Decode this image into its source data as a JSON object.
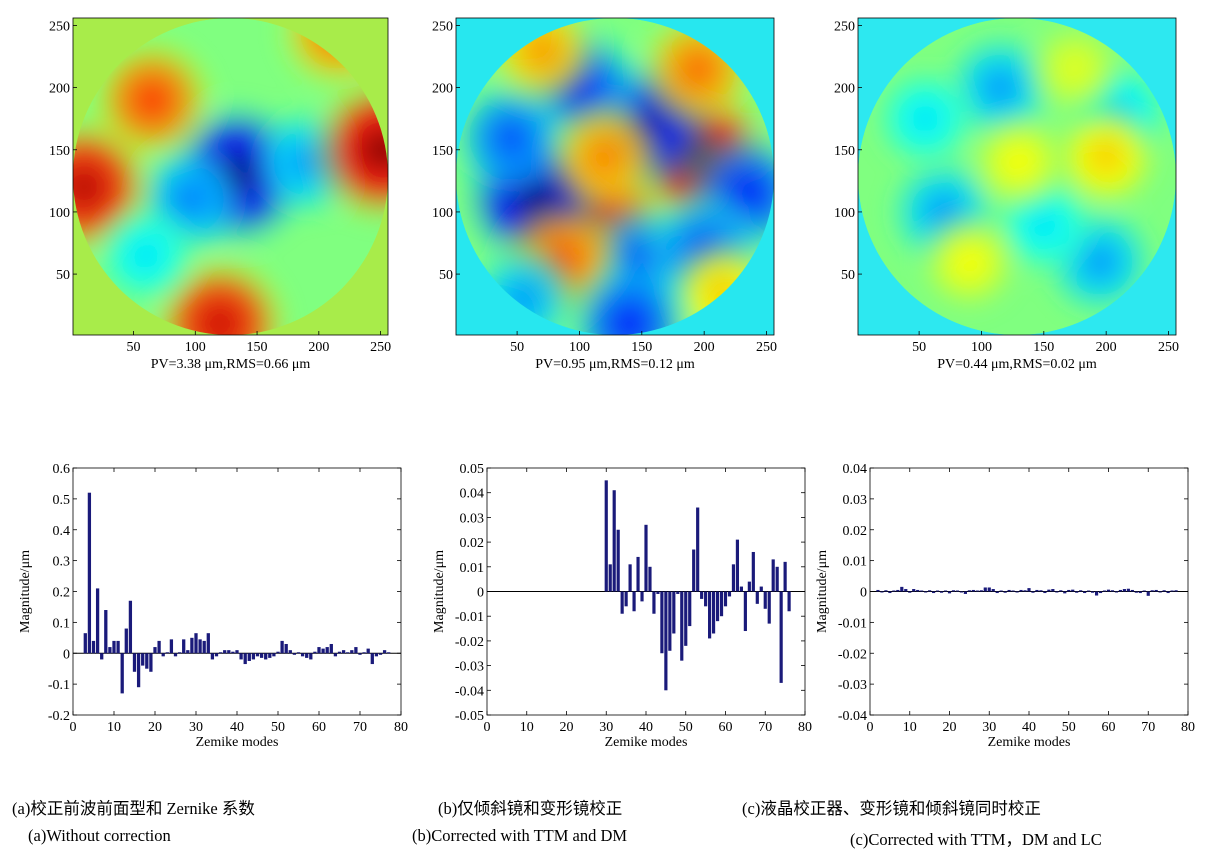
{
  "chart_data": [
    {
      "type": "heatmap",
      "panel": "a",
      "caption": "PV=3.38 μm,RMS=0.66 μm",
      "pv_um": 3.38,
      "rms_um": 0.66,
      "xlim": [
        1,
        256
      ],
      "ylim": [
        1,
        256
      ],
      "xticks": [
        50,
        100,
        150,
        200,
        250
      ],
      "yticks": [
        50,
        100,
        150,
        200,
        250
      ],
      "outside_color": "#a8ec4a",
      "colormap": "jet",
      "blobs": [
        {
          "x": 134,
          "y": 130,
          "level": -1.0
        },
        {
          "x": 95,
          "y": 110,
          "level": -0.5
        },
        {
          "x": 190,
          "y": 140,
          "level": -0.45
        },
        {
          "x": 65,
          "y": 190,
          "level": 0.65
        },
        {
          "x": 10,
          "y": 120,
          "level": 0.9
        },
        {
          "x": 252,
          "y": 150,
          "level": 1.0
        },
        {
          "x": 120,
          "y": 10,
          "level": 0.85
        },
        {
          "x": 215,
          "y": 245,
          "level": 0.55
        },
        {
          "x": 60,
          "y": 65,
          "level": -0.3
        }
      ]
    },
    {
      "type": "heatmap",
      "panel": "b",
      "caption": "PV=0.95 μm,RMS=0.12 μm",
      "pv_um": 0.95,
      "rms_um": 0.12,
      "xlim": [
        1,
        256
      ],
      "ylim": [
        1,
        256
      ],
      "xticks": [
        50,
        100,
        150,
        200,
        250
      ],
      "yticks": [
        50,
        100,
        150,
        200,
        250
      ],
      "outside_color": "#27e7ef",
      "colormap": "jet",
      "blobs": [
        {
          "x": 195,
          "y": 145,
          "level": 1.0
        },
        {
          "x": 118,
          "y": 100,
          "level": 0.75
        },
        {
          "x": 65,
          "y": 112,
          "level": -1.0
        },
        {
          "x": 155,
          "y": 170,
          "level": -0.85
        },
        {
          "x": 100,
          "y": 200,
          "level": -0.7
        },
        {
          "x": 45,
          "y": 160,
          "level": -0.6
        },
        {
          "x": 150,
          "y": 60,
          "level": -0.6
        },
        {
          "x": 235,
          "y": 115,
          "level": -0.7
        },
        {
          "x": 200,
          "y": 70,
          "level": -0.6
        },
        {
          "x": 85,
          "y": 60,
          "level": 0.6
        },
        {
          "x": 195,
          "y": 215,
          "level": 0.55
        },
        {
          "x": 70,
          "y": 230,
          "level": 0.45
        },
        {
          "x": 120,
          "y": 145,
          "level": 0.5
        },
        {
          "x": 215,
          "y": 35,
          "level": 0.35
        },
        {
          "x": 55,
          "y": 30,
          "level": -0.45
        },
        {
          "x": 140,
          "y": 10,
          "level": -0.7
        }
      ]
    },
    {
      "type": "heatmap",
      "panel": "c",
      "caption": "PV=0.44 μm,RMS=0.02 μm",
      "pv_um": 0.44,
      "rms_um": 0.02,
      "xlim": [
        1,
        256
      ],
      "ylim": [
        1,
        256
      ],
      "xticks": [
        50,
        100,
        150,
        200,
        250
      ],
      "yticks": [
        50,
        100,
        150,
        200,
        250
      ],
      "outside_color": "#2de8f0",
      "colormap": "jet",
      "blobs": [
        {
          "x": 70,
          "y": 100,
          "level": -0.45
        },
        {
          "x": 115,
          "y": 200,
          "level": -0.45
        },
        {
          "x": 195,
          "y": 60,
          "level": -0.45
        },
        {
          "x": 150,
          "y": 90,
          "level": -0.3
        },
        {
          "x": 210,
          "y": 180,
          "level": -0.35
        },
        {
          "x": 55,
          "y": 175,
          "level": -0.3
        },
        {
          "x": 200,
          "y": 145,
          "level": 0.35
        },
        {
          "x": 130,
          "y": 140,
          "level": 0.25
        },
        {
          "x": 90,
          "y": 60,
          "level": 0.25
        },
        {
          "x": 175,
          "y": 215,
          "level": 0.2
        }
      ]
    },
    {
      "type": "bar",
      "panel": "a",
      "xlabel": "Zemike modes",
      "ylabel": "Magnitude/μm",
      "xlim": [
        0,
        80
      ],
      "ylim": [
        -0.2,
        0.6
      ],
      "xticks": [
        0,
        10,
        20,
        30,
        40,
        50,
        60,
        70,
        80
      ],
      "yticks": [
        -0.2,
        -0.1,
        0,
        0.1,
        0.2,
        0.3,
        0.4,
        0.5,
        0.6
      ],
      "ytick_labels": [
        "-0.2",
        "-0.1",
        "0",
        "0.1",
        "0.2",
        "0.3",
        "0.4",
        "0.5",
        "0.6"
      ],
      "x": [
        3,
        4,
        5,
        6,
        7,
        8,
        9,
        10,
        11,
        12,
        13,
        14,
        15,
        16,
        17,
        18,
        19,
        20,
        21,
        22,
        23,
        24,
        25,
        26,
        27,
        28,
        29,
        30,
        31,
        32,
        33,
        34,
        35,
        36,
        37,
        38,
        39,
        40,
        41,
        42,
        43,
        44,
        45,
        46,
        47,
        48,
        49,
        50,
        51,
        52,
        53,
        54,
        55,
        56,
        57,
        58,
        59,
        60,
        61,
        62,
        63,
        64,
        65,
        66,
        67,
        68,
        69,
        70,
        71,
        72,
        73,
        74,
        75,
        76,
        77
      ],
      "values": [
        0.065,
        0.52,
        0.04,
        0.21,
        -0.02,
        0.14,
        0.02,
        0.04,
        0.04,
        -0.13,
        0.08,
        0.17,
        -0.06,
        -0.11,
        -0.04,
        -0.05,
        -0.06,
        0.02,
        0.04,
        -0.01,
        0.0,
        0.045,
        -0.01,
        0.0,
        0.045,
        0.01,
        0.05,
        0.065,
        0.045,
        0.04,
        0.065,
        -0.02,
        -0.01,
        0.0,
        0.01,
        0.01,
        0.005,
        0.01,
        -0.02,
        -0.035,
        -0.025,
        -0.02,
        -0.01,
        -0.015,
        -0.02,
        -0.015,
        -0.01,
        0.005,
        0.04,
        0.03,
        0.01,
        -0.005,
        0.0,
        -0.01,
        -0.015,
        -0.02,
        0.005,
        0.02,
        0.015,
        0.02,
        0.03,
        -0.01,
        0.005,
        0.01,
        0.0,
        0.01,
        0.02,
        -0.005,
        0.0,
        0.015,
        -0.035,
        -0.01,
        -0.005,
        0.01,
        0.0
      ],
      "color": "#1a1a7a"
    },
    {
      "type": "bar",
      "panel": "b",
      "xlabel": "Zemike modes",
      "ylabel": "Magnitude/μm",
      "xlim": [
        0,
        80
      ],
      "ylim": [
        -0.05,
        0.05
      ],
      "xticks": [
        0,
        10,
        20,
        30,
        40,
        50,
        60,
        70,
        80
      ],
      "yticks": [
        -0.05,
        -0.04,
        -0.03,
        -0.02,
        -0.01,
        0,
        0.01,
        0.02,
        0.03,
        0.04,
        0.05
      ],
      "ytick_labels": [
        "-0.05",
        "-0.04",
        "-0.03",
        "-0.02",
        "-0.01",
        "0",
        "0.01",
        "0.02",
        "0.03",
        "0.04",
        "0.05"
      ],
      "x": [
        30,
        31,
        32,
        33,
        34,
        35,
        36,
        37,
        38,
        39,
        40,
        41,
        42,
        43,
        44,
        45,
        46,
        47,
        48,
        49,
        50,
        51,
        52,
        53,
        54,
        55,
        56,
        57,
        58,
        59,
        60,
        61,
        62,
        63,
        64,
        65,
        66,
        67,
        68,
        69,
        70,
        71,
        72,
        73,
        74,
        75,
        76
      ],
      "values": [
        0.045,
        0.011,
        0.041,
        0.025,
        -0.009,
        -0.006,
        0.011,
        -0.008,
        0.014,
        -0.004,
        0.027,
        0.01,
        -0.009,
        -0.001,
        -0.025,
        -0.04,
        -0.024,
        -0.017,
        -0.001,
        -0.028,
        -0.022,
        -0.014,
        0.017,
        0.034,
        -0.003,
        -0.006,
        -0.019,
        -0.017,
        -0.012,
        -0.01,
        -0.006,
        -0.002,
        0.011,
        0.021,
        0.002,
        -0.016,
        0.004,
        0.016,
        -0.005,
        0.002,
        -0.007,
        -0.013,
        0.013,
        0.01,
        -0.037,
        0.012,
        -0.008
      ],
      "color": "#1a1a7a"
    },
    {
      "type": "bar",
      "panel": "c",
      "xlabel": "Zemike modes",
      "ylabel": "Magnitude/μm",
      "xlim": [
        0,
        80
      ],
      "ylim": [
        -0.04,
        0.04
      ],
      "xticks": [
        0,
        10,
        20,
        30,
        40,
        50,
        60,
        70,
        80
      ],
      "yticks": [
        -0.04,
        -0.03,
        -0.02,
        -0.01,
        0,
        0.01,
        0.02,
        0.03,
        0.04
      ],
      "ytick_labels": [
        "-0.04",
        "-0.03",
        "-0.02",
        "-0.01",
        "0",
        "0.01",
        "0.02",
        "0.03",
        "0.04"
      ],
      "x": [
        2,
        3,
        4,
        5,
        6,
        7,
        8,
        9,
        10,
        11,
        12,
        13,
        14,
        15,
        16,
        17,
        18,
        19,
        20,
        21,
        22,
        23,
        24,
        25,
        26,
        27,
        28,
        29,
        30,
        31,
        32,
        33,
        34,
        35,
        36,
        37,
        38,
        39,
        40,
        41,
        42,
        43,
        44,
        45,
        46,
        47,
        48,
        49,
        50,
        51,
        52,
        53,
        54,
        55,
        56,
        57,
        58,
        59,
        60,
        61,
        62,
        63,
        64,
        65,
        66,
        67,
        68,
        69,
        70,
        71,
        72,
        73,
        74,
        75,
        76,
        77
      ],
      "values": [
        0.0005,
        -0.0003,
        0.0004,
        -0.0005,
        0.0003,
        0.0005,
        0.0015,
        0.0008,
        -0.0004,
        0.0008,
        0.0005,
        0.0003,
        -0.0003,
        0.0004,
        -0.0005,
        0.0003,
        -0.0004,
        0.0003,
        -0.0006,
        0.0004,
        0.0003,
        -0.0003,
        -0.0008,
        0.0004,
        0.0005,
        0.0003,
        0.0004,
        0.0013,
        0.0013,
        0.0008,
        -0.0005,
        0.0003,
        -0.0004,
        0.0005,
        0.0003,
        -0.0003,
        0.0005,
        0.0004,
        0.0011,
        -0.0004,
        0.0005,
        0.0004,
        -0.0005,
        0.0006,
        0.0008,
        -0.0003,
        0.0004,
        -0.0006,
        0.0005,
        0.0006,
        -0.0004,
        0.0004,
        -0.0005,
        0.0003,
        -0.0004,
        -0.0013,
        -0.0005,
        0.0003,
        0.0006,
        0.0004,
        -0.0003,
        0.0005,
        0.0008,
        0.0009,
        0.0005,
        -0.0004,
        -0.0005,
        0.0003,
        -0.0014,
        0.0004,
        0.0005,
        -0.0003,
        0.0004,
        -0.0005,
        0.0003,
        0.0004
      ],
      "color": "#1a1a7a"
    }
  ],
  "captions": {
    "a_cn": "(a)校正前波前面型和 Zernike 系数",
    "b_cn": "(b)仅倾斜镜和变形镜校正",
    "c_cn": "(c)液晶校正器、变形镜和倾斜镜同时校正",
    "a_en": "(a)Without correction",
    "b_en": "(b)Corrected with TTM and DM",
    "c_en": "(c)Corrected with TTM，DM and LC"
  }
}
